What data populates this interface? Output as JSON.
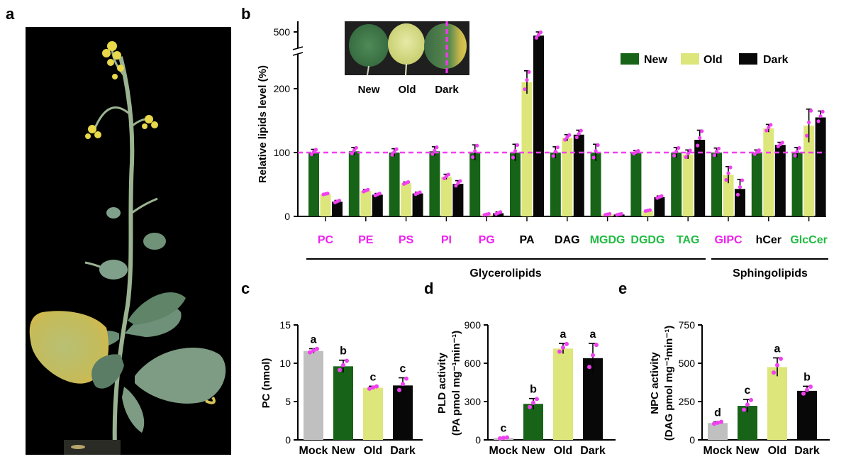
{
  "panel_labels": [
    "a",
    "b",
    "c",
    "d",
    "e"
  ],
  "colors": {
    "mock": "#c0c0c0",
    "new": "#176317",
    "old": "#dde67a",
    "dark": "#080808",
    "points": "#f040f0",
    "ref_line": "#f040f0",
    "cat_pink": "#ee22ee",
    "cat_green": "#22bb44",
    "cat_black": "#000000"
  },
  "chart_data": [
    {
      "panel": "b",
      "type": "bar",
      "ylabel": "Relative  lipids  level  (%)",
      "y_ticks": [
        "0",
        "100",
        "200",
        "500"
      ],
      "y_axis_break": true,
      "reference_line": 100,
      "legend": {
        "placement": "top-right",
        "entries": [
          "New",
          "Old",
          "Dark"
        ]
      },
      "inset_labels": [
        "New",
        "Old",
        "Dark"
      ],
      "categories": [
        "PC",
        "PE",
        "PS",
        "PI",
        "PG",
        "PA",
        "DAG",
        "MGDG",
        "DGDG",
        "TAG",
        "GIPC",
        "hCer",
        "GlcCer"
      ],
      "category_colors": [
        "pink",
        "pink",
        "pink",
        "pink",
        "pink",
        "black",
        "black",
        "green",
        "green",
        "green",
        "pink",
        "black",
        "green"
      ],
      "groups": [
        {
          "label": "Glycerolipids",
          "categories": [
            "PC",
            "PE",
            "PS",
            "PI",
            "PG",
            "PA",
            "DAG",
            "MGDG",
            "DGDG",
            "TAG"
          ]
        },
        {
          "label": "Sphingolipids",
          "categories": [
            "GIPC",
            "hCer",
            "GlcCer"
          ]
        }
      ],
      "series": [
        {
          "name": "New",
          "values": [
            100,
            102,
            100,
            102,
            100,
            100,
            100,
            100,
            100,
            100,
            100,
            100,
            100
          ],
          "errors": [
            5,
            6,
            6,
            7,
            12,
            13,
            9,
            13,
            3,
            8,
            7,
            4,
            8
          ]
        },
        {
          "name": "Old",
          "values": [
            35,
            40,
            52,
            62,
            3,
            210,
            123,
            3,
            9,
            97,
            65,
            138,
            142
          ],
          "errors": [
            1,
            2,
            2,
            4,
            1,
            18,
            5,
            1,
            1,
            7,
            13,
            6,
            26
          ]
        },
        {
          "name": "Dark",
          "values": [
            23,
            34,
            36,
            51,
            5,
            455,
            128,
            3,
            30,
            120,
            43,
            112,
            155
          ],
          "errors": [
            2,
            2,
            2,
            5,
            2,
            45,
            7,
            1,
            2,
            15,
            15,
            4,
            10
          ]
        }
      ]
    },
    {
      "panel": "c",
      "type": "bar",
      "ylabel": "PC (nmol)",
      "ylim": [
        0,
        15
      ],
      "y_ticks": [
        0,
        5,
        10,
        15
      ],
      "categories": [
        "Mock",
        "New",
        "Old",
        "Dark"
      ],
      "values": [
        11.6,
        9.6,
        6.8,
        7.1
      ],
      "errors": [
        0.3,
        0.8,
        0.2,
        1.0
      ],
      "significance": [
        "a",
        "b",
        "c",
        "c"
      ]
    },
    {
      "panel": "d",
      "type": "bar",
      "ylabel": "PLD activity",
      "ylabel2": "(PA pmol mg⁻¹min⁻¹)",
      "ylim": [
        0,
        900
      ],
      "y_ticks": [
        0,
        300,
        600,
        900
      ],
      "categories": [
        "Mock",
        "New",
        "Old",
        "Dark"
      ],
      "values": [
        15,
        282,
        715,
        640
      ],
      "errors": [
        5,
        42,
        40,
        115
      ],
      "significance": [
        "c",
        "b",
        "a",
        "a"
      ]
    },
    {
      "panel": "e",
      "type": "bar",
      "ylabel": "NPC activity",
      "ylabel2": "(DAG pmol mg⁻¹min⁻¹)",
      "ylim": [
        0,
        750
      ],
      "y_ticks": [
        0,
        250,
        500,
        750
      ],
      "categories": [
        "Mock",
        "New",
        "Old",
        "Dark"
      ],
      "values": [
        110,
        222,
        475,
        320
      ],
      "errors": [
        8,
        42,
        60,
        30
      ],
      "significance": [
        "d",
        "c",
        "a",
        "b"
      ]
    }
  ]
}
